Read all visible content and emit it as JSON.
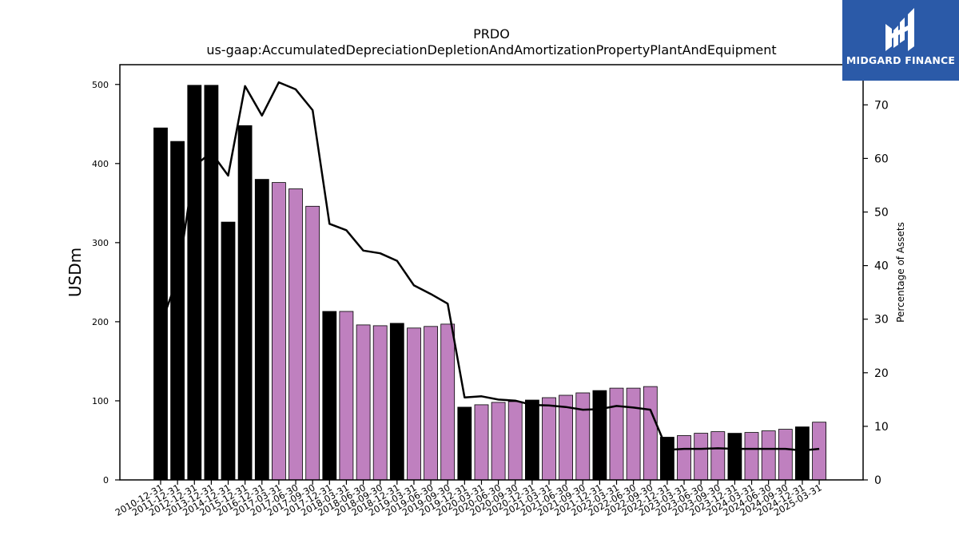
{
  "chart_data": {
    "type": "bar",
    "title": "PRDO",
    "subtitle": "us-gaap:AccumulatedDepreciationDepletionAndAmortizationPropertyPlantAndEquipment",
    "ylabel": "USDm",
    "y2label": "Percentage of Assets",
    "ylim": [
      0,
      525
    ],
    "y2lim": [
      0,
      77.5
    ],
    "yticks": [
      "0",
      "100",
      "200",
      "300",
      "400",
      "500"
    ],
    "y2ticks": [
      "0",
      "10",
      "20",
      "30",
      "40",
      "50",
      "60",
      "70"
    ],
    "colors": {
      "annual": "#000000",
      "quarterly": "#bf80bf",
      "line": "#000000"
    },
    "categories": [
      "2010-12-31",
      "2011-12-31",
      "2012-12-31",
      "2013-12-31",
      "2014-12-31",
      "2015-12-31",
      "2016-12-31",
      "2017-03-31",
      "2017-06-30",
      "2017-09-30",
      "2017-12-31",
      "2018-03-31",
      "2018-06-30",
      "2018-09-30",
      "2018-12-31",
      "2019-03-31",
      "2019-06-30",
      "2019-09-30",
      "2019-12-31",
      "2020-03-31",
      "2020-06-30",
      "2020-09-30",
      "2020-12-31",
      "2021-03-31",
      "2021-06-30",
      "2021-09-30",
      "2021-12-31",
      "2022-03-31",
      "2022-06-30",
      "2022-09-30",
      "2022-12-31",
      "2023-03-31",
      "2023-06-30",
      "2023-09-30",
      "2023-12-31",
      "2024-03-31",
      "2024-06-30",
      "2024-09-30",
      "2024-12-31",
      "2025-03-31"
    ],
    "series": [
      {
        "type": "bar",
        "values": [
          445,
          428,
          499,
          499,
          326,
          448,
          380,
          376,
          368,
          346,
          213,
          213,
          196,
          195,
          198,
          192,
          194,
          197,
          92,
          95,
          98,
          99,
          101,
          104,
          107,
          110,
          113,
          116,
          116,
          118,
          54,
          56,
          59,
          61,
          59,
          60,
          62,
          64,
          67,
          73
        ]
      },
      {
        "type": "line",
        "axis": "right",
        "values": [
          28.9,
          37.6,
          58.6,
          61.1,
          56.8,
          73.5,
          68.0,
          74.2,
          72.9,
          69.0,
          47.8,
          46.6,
          42.8,
          42.3,
          40.9,
          36.3,
          34.7,
          32.9,
          15.4,
          15.6,
          15.0,
          14.8,
          14.0,
          13.9,
          13.6,
          13.1,
          13.2,
          13.8,
          13.5,
          13.1,
          5.6,
          5.8,
          5.8,
          5.9,
          5.8,
          5.8,
          5.8,
          5.8,
          5.5,
          5.8
        ]
      }
    ],
    "bar_kind": [
      "annual",
      "annual",
      "annual",
      "annual",
      "annual",
      "annual",
      "annual",
      "quarterly",
      "quarterly",
      "quarterly",
      "annual",
      "quarterly",
      "quarterly",
      "quarterly",
      "annual",
      "quarterly",
      "quarterly",
      "quarterly",
      "annual",
      "quarterly",
      "quarterly",
      "quarterly",
      "annual",
      "quarterly",
      "quarterly",
      "quarterly",
      "annual",
      "quarterly",
      "quarterly",
      "quarterly",
      "annual",
      "quarterly",
      "quarterly",
      "quarterly",
      "annual",
      "quarterly",
      "quarterly",
      "quarterly",
      "annual",
      "quarterly"
    ]
  },
  "logo": {
    "text": "MIDGARD FINANCE",
    "bg": "#2b5aa8"
  }
}
